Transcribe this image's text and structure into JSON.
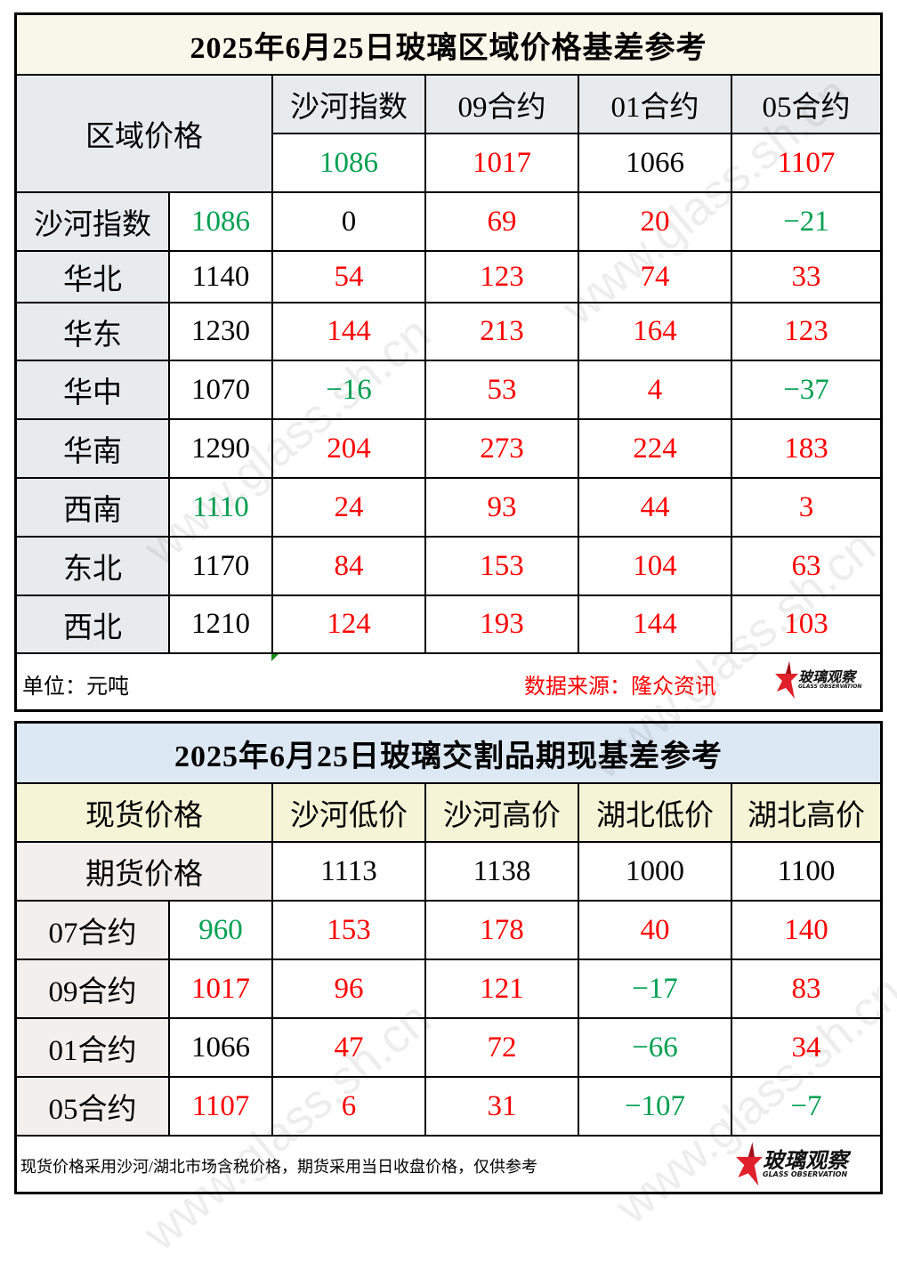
{
  "table1": {
    "title": "2025年6月25日玻璃区域价格基差参考",
    "corner_label": "区域价格",
    "columns": [
      "沙河指数",
      "09合约",
      "01合约",
      "05合约"
    ],
    "column_prices": [
      "1086",
      "1017",
      "1066",
      "1107"
    ],
    "rows": [
      {
        "region": "沙河指数",
        "price": "1086",
        "values": [
          "0",
          "69",
          "20",
          "-21"
        ]
      },
      {
        "region": "华北",
        "price": "1140",
        "values": [
          "54",
          "123",
          "74",
          "33"
        ]
      },
      {
        "region": "华东",
        "price": "1230",
        "values": [
          "144",
          "213",
          "164",
          "123"
        ]
      },
      {
        "region": "华中",
        "price": "1070",
        "values": [
          "-16",
          "53",
          "4",
          "-37"
        ]
      },
      {
        "region": "华南",
        "price": "1290",
        "values": [
          "204",
          "273",
          "224",
          "183"
        ]
      },
      {
        "region": "西南",
        "price": "1110",
        "values": [
          "24",
          "93",
          "44",
          "3"
        ]
      },
      {
        "region": "东北",
        "price": "1170",
        "values": [
          "84",
          "153",
          "104",
          "63"
        ]
      },
      {
        "region": "西北",
        "price": "1210",
        "values": [
          "124",
          "193",
          "144",
          "103"
        ]
      }
    ],
    "unit_label": "单位：元吨",
    "source_label": "数据来源：隆众资讯"
  },
  "table2": {
    "title": "2025年6月25日玻璃交割品期现基差参考",
    "spot_label": "现货价格",
    "futures_label": "期货价格",
    "columns": [
      "沙河低价",
      "沙河高价",
      "湖北低价",
      "湖北高价"
    ],
    "spot_prices": [
      "1113",
      "1138",
      "1000",
      "1100"
    ],
    "rows": [
      {
        "contract": "07合约",
        "price": "960",
        "values": [
          "153",
          "178",
          "40",
          "140"
        ]
      },
      {
        "contract": "09合约",
        "price": "1017",
        "values": [
          "96",
          "121",
          "-17",
          "83"
        ]
      },
      {
        "contract": "01合约",
        "price": "1066",
        "values": [
          "47",
          "72",
          "-66",
          "34"
        ]
      },
      {
        "contract": "05合约",
        "price": "1107",
        "values": [
          "6",
          "31",
          "-107",
          "-7"
        ]
      }
    ],
    "note": "现货价格采用沙河/湖北市场含税价格，期货采用当日收盘价格，仅供参考"
  },
  "logo": {
    "cn": "玻璃观察",
    "en": "GLASS OBSERVATION",
    "icon": "red-star-logo-icon"
  },
  "watermark": "www.glass.sh.cn",
  "colors": {
    "positive": "#ff0000",
    "negative": "#00a050",
    "neutral": "#000000",
    "title1_bg": "#f8f8ea",
    "title2_bg": "#dce8f4",
    "header_gray": "#e8ebee",
    "header_yellow": "#f5f4d6"
  },
  "chart_data": {
    "type": "table",
    "tables": [
      {
        "title": "2025年6月25日玻璃区域价格基差参考",
        "unit": "元吨",
        "columns": [
          "区域",
          "区域价格",
          "沙河指数(1086)",
          "09合约(1017)",
          "01合约(1066)",
          "05合约(1107)"
        ],
        "rows": [
          [
            "沙河指数",
            1086,
            0,
            69,
            20,
            -21
          ],
          [
            "华北",
            1140,
            54,
            123,
            74,
            33
          ],
          [
            "华东",
            1230,
            144,
            213,
            164,
            123
          ],
          [
            "华中",
            1070,
            -16,
            53,
            4,
            -37
          ],
          [
            "华南",
            1290,
            204,
            273,
            224,
            183
          ],
          [
            "西南",
            1110,
            24,
            93,
            44,
            3
          ],
          [
            "东北",
            1170,
            84,
            153,
            104,
            63
          ],
          [
            "西北",
            1210,
            124,
            193,
            144,
            103
          ]
        ],
        "source": "隆众资讯"
      },
      {
        "title": "2025年6月25日玻璃交割品期现基差参考",
        "columns": [
          "合约",
          "期货价格",
          "沙河低价(1113)",
          "沙河高价(1138)",
          "湖北低价(1000)",
          "湖北高价(1100)"
        ],
        "rows": [
          [
            "07合约",
            960,
            153,
            178,
            40,
            140
          ],
          [
            "09合约",
            1017,
            96,
            121,
            -17,
            83
          ],
          [
            "01合约",
            1066,
            47,
            72,
            -66,
            34
          ],
          [
            "05合约",
            1107,
            6,
            31,
            -107,
            -7
          ]
        ]
      }
    ]
  }
}
